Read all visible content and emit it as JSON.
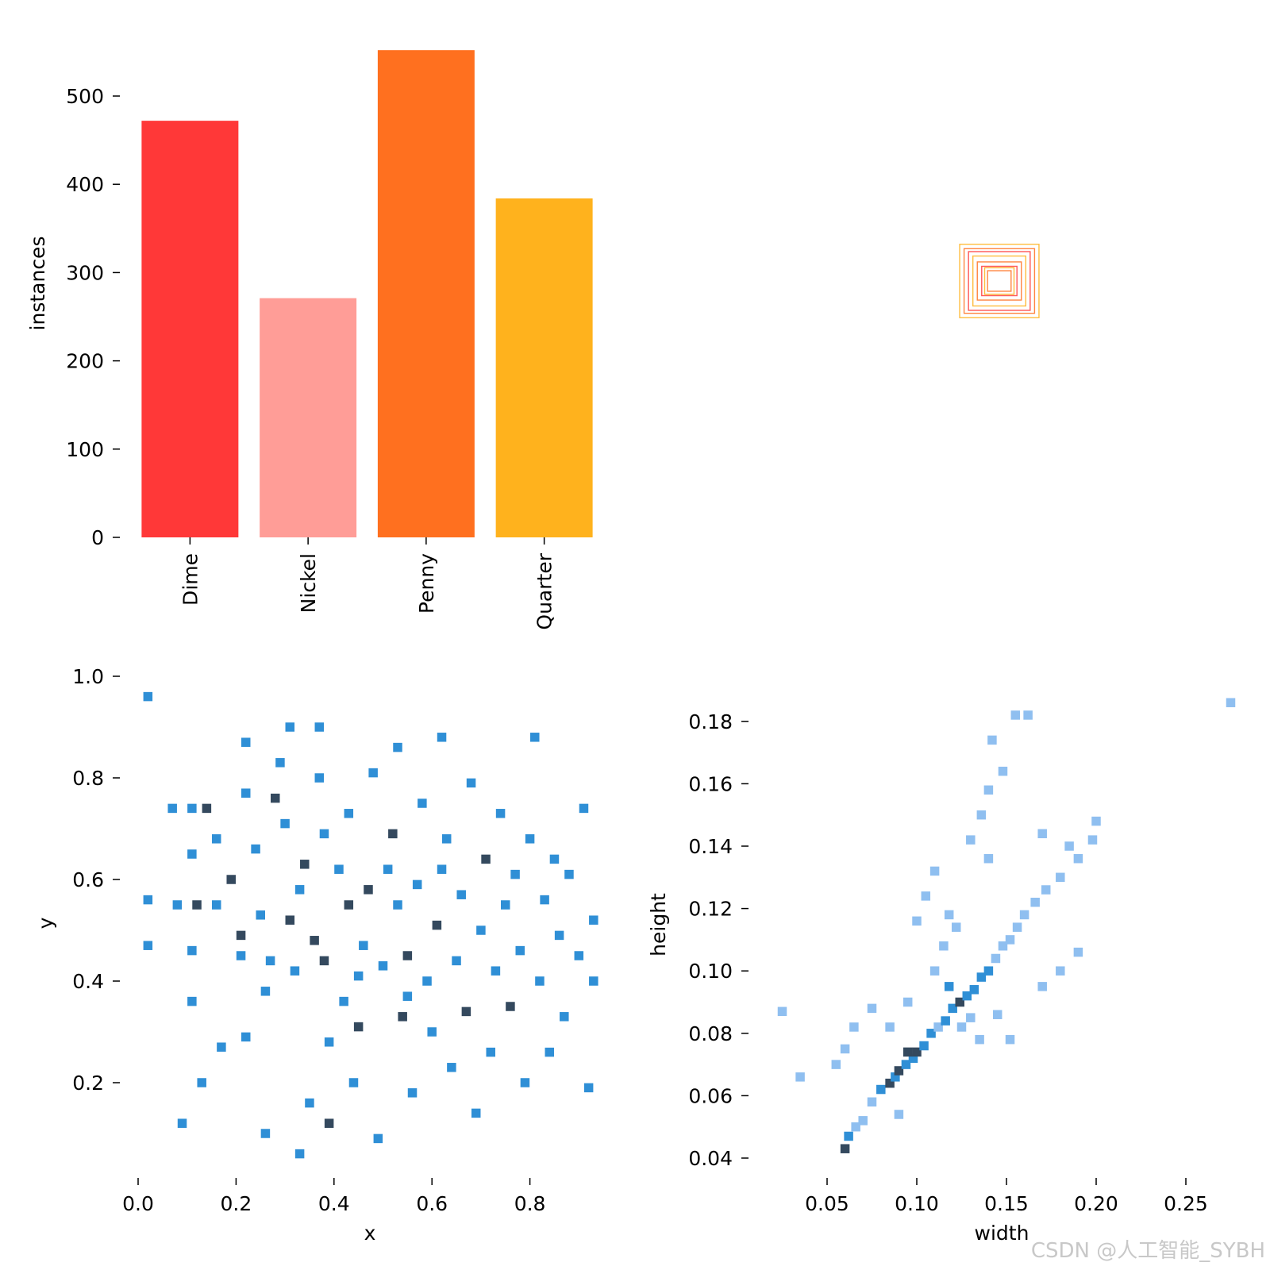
{
  "chart_data": [
    {
      "type": "bar",
      "categories": [
        "Dime",
        "Nickel",
        "Penny",
        "Quarter"
      ],
      "values": [
        472,
        271,
        552,
        384
      ],
      "colors": [
        "#ff3838",
        "#ff9d97",
        "#ff701f",
        "#ffb21d"
      ],
      "title": "",
      "xlabel": "",
      "ylabel": "instances",
      "ylim": [
        0,
        560
      ],
      "yticks": [
        0,
        100,
        200,
        300,
        400,
        500
      ],
      "grid": false
    },
    {
      "type": "box-overlay",
      "description_of_marks": "nested rectangles of label boxes centred on the image, coloured by class",
      "box_colors": [
        "#ffb21d",
        "#ff701f",
        "#ff3838"
      ],
      "boxes_wh": [
        [
          0.27,
          0.25
        ],
        [
          0.24,
          0.22
        ],
        [
          0.21,
          0.2
        ],
        [
          0.18,
          0.17
        ],
        [
          0.15,
          0.13
        ],
        [
          0.12,
          0.1
        ],
        [
          0.1,
          0.09
        ],
        [
          0.08,
          0.07
        ]
      ]
    },
    {
      "type": "heatmap",
      "xlabel": "x",
      "ylabel": "y",
      "xlim": [
        0.0,
        0.95
      ],
      "ylim": [
        0.0,
        1.0
      ],
      "xticks": [
        "0.0",
        "0.2",
        "0.4",
        "0.6",
        "0.8"
      ],
      "yticks": [
        "0.2",
        "0.4",
        "0.6",
        "0.8",
        "1.0"
      ],
      "colors": {
        "low": "#2f8fd6",
        "high": "#34495e"
      },
      "cells": [
        [
          0.02,
          0.96,
          1
        ],
        [
          0.02,
          0.56,
          1
        ],
        [
          0.02,
          0.47,
          1
        ],
        [
          0.07,
          0.74,
          1
        ],
        [
          0.08,
          0.55,
          1
        ],
        [
          0.09,
          0.12,
          1
        ],
        [
          0.11,
          0.74,
          1
        ],
        [
          0.11,
          0.65,
          1
        ],
        [
          0.12,
          0.55,
          2
        ],
        [
          0.11,
          0.46,
          1
        ],
        [
          0.11,
          0.36,
          1
        ],
        [
          0.14,
          0.74,
          2
        ],
        [
          0.13,
          0.2,
          1
        ],
        [
          0.16,
          0.68,
          1
        ],
        [
          0.16,
          0.55,
          1
        ],
        [
          0.17,
          0.27,
          1
        ],
        [
          0.19,
          0.6,
          2
        ],
        [
          0.21,
          0.45,
          1
        ],
        [
          0.21,
          0.49,
          2
        ],
        [
          0.22,
          0.29,
          1
        ],
        [
          0.22,
          0.77,
          1
        ],
        [
          0.22,
          0.87,
          1
        ],
        [
          0.24,
          0.66,
          1
        ],
        [
          0.25,
          0.53,
          1
        ],
        [
          0.26,
          0.1,
          1
        ],
        [
          0.26,
          0.38,
          1
        ],
        [
          0.27,
          0.44,
          1
        ],
        [
          0.28,
          0.76,
          2
        ],
        [
          0.29,
          0.83,
          1
        ],
        [
          0.3,
          0.71,
          1
        ],
        [
          0.31,
          0.9,
          1
        ],
        [
          0.31,
          0.52,
          2
        ],
        [
          0.32,
          0.42,
          1
        ],
        [
          0.33,
          0.06,
          1
        ],
        [
          0.34,
          0.63,
          2
        ],
        [
          0.35,
          0.16,
          1
        ],
        [
          0.36,
          0.48,
          2
        ],
        [
          0.37,
          0.9,
          1
        ],
        [
          0.37,
          0.8,
          1
        ],
        [
          0.38,
          0.69,
          1
        ],
        [
          0.38,
          0.44,
          2
        ],
        [
          0.39,
          0.28,
          1
        ],
        [
          0.39,
          0.12,
          2
        ],
        [
          0.41,
          0.62,
          1
        ],
        [
          0.42,
          0.36,
          1
        ],
        [
          0.43,
          0.55,
          2
        ],
        [
          0.43,
          0.73,
          1
        ],
        [
          0.44,
          0.2,
          1
        ],
        [
          0.45,
          0.31,
          2
        ],
        [
          0.46,
          0.47,
          1
        ],
        [
          0.47,
          0.58,
          2
        ],
        [
          0.48,
          0.81,
          1
        ],
        [
          0.49,
          0.09,
          1
        ],
        [
          0.5,
          0.43,
          1
        ],
        [
          0.51,
          0.62,
          1
        ],
        [
          0.52,
          0.69,
          2
        ],
        [
          0.53,
          0.86,
          1
        ],
        [
          0.53,
          0.55,
          1
        ],
        [
          0.54,
          0.33,
          2
        ],
        [
          0.55,
          0.45,
          2
        ],
        [
          0.56,
          0.18,
          1
        ],
        [
          0.57,
          0.59,
          1
        ],
        [
          0.58,
          0.75,
          1
        ],
        [
          0.59,
          0.4,
          1
        ],
        [
          0.6,
          0.3,
          1
        ],
        [
          0.61,
          0.51,
          2
        ],
        [
          0.62,
          0.88,
          1
        ],
        [
          0.63,
          0.68,
          1
        ],
        [
          0.64,
          0.23,
          1
        ],
        [
          0.65,
          0.44,
          1
        ],
        [
          0.66,
          0.57,
          1
        ],
        [
          0.67,
          0.34,
          2
        ],
        [
          0.68,
          0.79,
          1
        ],
        [
          0.69,
          0.14,
          1
        ],
        [
          0.7,
          0.5,
          1
        ],
        [
          0.71,
          0.64,
          2
        ],
        [
          0.72,
          0.26,
          1
        ],
        [
          0.73,
          0.42,
          1
        ],
        [
          0.74,
          0.73,
          1
        ],
        [
          0.75,
          0.55,
          1
        ],
        [
          0.76,
          0.35,
          2
        ],
        [
          0.77,
          0.61,
          1
        ],
        [
          0.78,
          0.46,
          1
        ],
        [
          0.79,
          0.2,
          1
        ],
        [
          0.8,
          0.68,
          1
        ],
        [
          0.81,
          0.88,
          1
        ],
        [
          0.82,
          0.4,
          1
        ],
        [
          0.83,
          0.56,
          1
        ],
        [
          0.84,
          0.26,
          1
        ],
        [
          0.85,
          0.64,
          1
        ],
        [
          0.86,
          0.49,
          1
        ],
        [
          0.87,
          0.33,
          1
        ],
        [
          0.88,
          0.61,
          1
        ],
        [
          0.9,
          0.45,
          1
        ],
        [
          0.91,
          0.74,
          1
        ],
        [
          0.92,
          0.19,
          1
        ],
        [
          0.93,
          0.4,
          1
        ],
        [
          0.93,
          0.52,
          1
        ],
        [
          0.45,
          0.41,
          1
        ],
        [
          0.55,
          0.37,
          1
        ],
        [
          0.33,
          0.58,
          1
        ],
        [
          0.62,
          0.62,
          1
        ]
      ]
    },
    {
      "type": "heatmap",
      "xlabel": "width",
      "ylabel": "height",
      "xlim": [
        0.02,
        0.28
      ],
      "ylim": [
        0.035,
        0.19
      ],
      "xticks": [
        "0.05",
        "0.10",
        "0.15",
        "0.20",
        "0.25"
      ],
      "yticks": [
        "0.04",
        "0.06",
        "0.08",
        "0.10",
        "0.12",
        "0.14",
        "0.16",
        "0.18"
      ],
      "colors": {
        "low": "#8fbff0",
        "mid": "#2f8fd6",
        "high": "#34495e"
      },
      "cells": [
        [
          0.06,
          0.043,
          3
        ],
        [
          0.062,
          0.047,
          2
        ],
        [
          0.066,
          0.05,
          1
        ],
        [
          0.07,
          0.052,
          1
        ],
        [
          0.075,
          0.058,
          1
        ],
        [
          0.08,
          0.062,
          2
        ],
        [
          0.085,
          0.064,
          3
        ],
        [
          0.088,
          0.066,
          2
        ],
        [
          0.09,
          0.068,
          3
        ],
        [
          0.094,
          0.07,
          2
        ],
        [
          0.098,
          0.072,
          2
        ],
        [
          0.1,
          0.074,
          3
        ],
        [
          0.104,
          0.076,
          2
        ],
        [
          0.108,
          0.08,
          2
        ],
        [
          0.112,
          0.082,
          1
        ],
        [
          0.116,
          0.084,
          2
        ],
        [
          0.12,
          0.088,
          2
        ],
        [
          0.124,
          0.09,
          3
        ],
        [
          0.128,
          0.092,
          2
        ],
        [
          0.132,
          0.094,
          2
        ],
        [
          0.136,
          0.098,
          2
        ],
        [
          0.14,
          0.1,
          2
        ],
        [
          0.144,
          0.104,
          1
        ],
        [
          0.148,
          0.108,
          1
        ],
        [
          0.152,
          0.11,
          1
        ],
        [
          0.156,
          0.114,
          1
        ],
        [
          0.16,
          0.118,
          1
        ],
        [
          0.166,
          0.122,
          1
        ],
        [
          0.172,
          0.126,
          1
        ],
        [
          0.18,
          0.13,
          1
        ],
        [
          0.19,
          0.136,
          1
        ],
        [
          0.198,
          0.142,
          1
        ],
        [
          0.2,
          0.148,
          1
        ],
        [
          0.055,
          0.07,
          1
        ],
        [
          0.06,
          0.075,
          1
        ],
        [
          0.065,
          0.082,
          1
        ],
        [
          0.075,
          0.088,
          1
        ],
        [
          0.085,
          0.082,
          1
        ],
        [
          0.095,
          0.09,
          1
        ],
        [
          0.11,
          0.1,
          1
        ],
        [
          0.115,
          0.108,
          1
        ],
        [
          0.125,
          0.082,
          1
        ],
        [
          0.135,
          0.078,
          1
        ],
        [
          0.145,
          0.086,
          1
        ],
        [
          0.152,
          0.078,
          1
        ],
        [
          0.1,
          0.116,
          1
        ],
        [
          0.105,
          0.124,
          1
        ],
        [
          0.11,
          0.132,
          1
        ],
        [
          0.118,
          0.118,
          1
        ],
        [
          0.122,
          0.114,
          1
        ],
        [
          0.13,
          0.142,
          1
        ],
        [
          0.14,
          0.136,
          1
        ],
        [
          0.136,
          0.15,
          1
        ],
        [
          0.14,
          0.158,
          1
        ],
        [
          0.148,
          0.164,
          1
        ],
        [
          0.142,
          0.174,
          1
        ],
        [
          0.155,
          0.182,
          1
        ],
        [
          0.162,
          0.182,
          1
        ],
        [
          0.17,
          0.144,
          1
        ],
        [
          0.185,
          0.14,
          1
        ],
        [
          0.19,
          0.106,
          1
        ],
        [
          0.18,
          0.1,
          1
        ],
        [
          0.17,
          0.095,
          1
        ],
        [
          0.025,
          0.087,
          1
        ],
        [
          0.035,
          0.066,
          1
        ],
        [
          0.275,
          0.186,
          1
        ],
        [
          0.09,
          0.054,
          1
        ],
        [
          0.095,
          0.074,
          3
        ],
        [
          0.118,
          0.095,
          2
        ],
        [
          0.13,
          0.085,
          1
        ]
      ]
    }
  ],
  "watermark": "CSDN @人工智能_SYBH"
}
